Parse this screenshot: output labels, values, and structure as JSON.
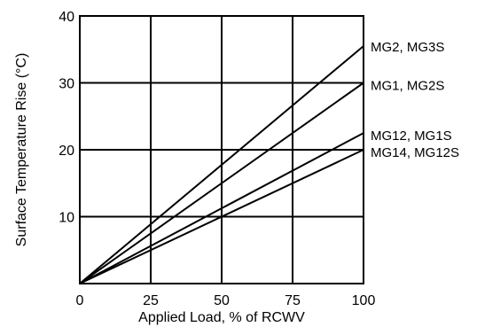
{
  "chart_data": {
    "type": "line",
    "xlabel": "Applied Load, % of RCWV",
    "ylabel": "Surface Temperature Rise  (°C)",
    "xlim": [
      0,
      100
    ],
    "ylim": [
      0,
      40
    ],
    "x_ticks": [
      0,
      25,
      50,
      75,
      100
    ],
    "y_ticks": [
      10,
      20,
      30,
      40
    ],
    "grid": true,
    "legend": "right (labels at line ends)",
    "series": [
      {
        "name": "MG2, MG3S",
        "x": [
          0,
          100
        ],
        "values": [
          0,
          35.5
        ]
      },
      {
        "name": "MG1, MG2S",
        "x": [
          0,
          100
        ],
        "values": [
          0,
          30
        ]
      },
      {
        "name": "MG12, MG1S",
        "x": [
          0,
          100
        ],
        "values": [
          0,
          22.5
        ]
      },
      {
        "name": "MG14, MG12S",
        "x": [
          0,
          100
        ],
        "values": [
          0,
          20
        ]
      }
    ]
  }
}
